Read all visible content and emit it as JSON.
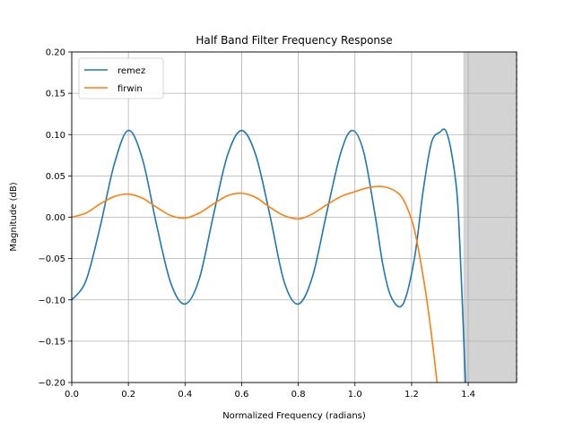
{
  "chart_data": {
    "type": "line",
    "title": "Half Band Filter Frequency Response",
    "xlabel": "Normalized Frequency (radians)",
    "ylabel": "Magnitude (dB)",
    "xlim": [
      0.0,
      1.5708
    ],
    "ylim": [
      -0.2,
      0.2
    ],
    "x_ticks": [
      0.0,
      0.2,
      0.4,
      0.6,
      0.8,
      1.0,
      1.2,
      1.4
    ],
    "x_tick_labels": [
      "0.0",
      "0.2",
      "0.4",
      "0.6",
      "0.8",
      "1.0",
      "1.2",
      "1.4"
    ],
    "y_ticks": [
      -0.2,
      -0.15,
      -0.1,
      -0.05,
      0.0,
      0.05,
      0.1,
      0.15,
      0.2
    ],
    "y_tick_labels": [
      "−0.20",
      "−0.15",
      "−0.10",
      "−0.05",
      "0.00",
      "0.05",
      "0.10",
      "0.15",
      "0.20"
    ],
    "grid": true,
    "legend_position": "top-left",
    "shaded_region": {
      "x_start": 1.383,
      "x_end": 1.5708,
      "color": "#d3d3d3"
    },
    "vertical_line": {
      "x": 1.5708,
      "color": "#2ca02c",
      "style": "dashed"
    },
    "series": [
      {
        "name": "remez",
        "color": "#1f77b4",
        "x": [
          0.0,
          0.05,
          0.1,
          0.15,
          0.2,
          0.25,
          0.3,
          0.35,
          0.4,
          0.45,
          0.5,
          0.55,
          0.6,
          0.65,
          0.7,
          0.75,
          0.8,
          0.85,
          0.9,
          0.95,
          0.99,
          1.03,
          1.07,
          1.1,
          1.13,
          1.17,
          1.21,
          1.24,
          1.27,
          1.3,
          1.32,
          1.34,
          1.36,
          1.37,
          1.38,
          1.39
        ],
        "values": [
          -0.1,
          -0.077,
          -0.012,
          0.064,
          0.105,
          0.07,
          -0.01,
          -0.08,
          -0.105,
          -0.075,
          0.002,
          0.075,
          0.105,
          0.075,
          0.002,
          -0.078,
          -0.105,
          -0.072,
          0.005,
          0.078,
          0.105,
          0.08,
          0.005,
          -0.06,
          -0.098,
          -0.105,
          -0.05,
          0.03,
          0.09,
          0.103,
          0.105,
          0.08,
          0.03,
          -0.03,
          -0.11,
          -0.2
        ]
      },
      {
        "name": "firwin",
        "color": "#ff7f0e",
        "x": [
          0.0,
          0.05,
          0.1,
          0.15,
          0.2,
          0.25,
          0.3,
          0.35,
          0.4,
          0.45,
          0.5,
          0.55,
          0.6,
          0.65,
          0.7,
          0.75,
          0.8,
          0.85,
          0.9,
          0.95,
          1.0,
          1.05,
          1.1,
          1.15,
          1.18,
          1.21,
          1.24,
          1.26,
          1.28,
          1.29
        ],
        "values": [
          0.0,
          0.005,
          0.016,
          0.025,
          0.028,
          0.023,
          0.012,
          0.002,
          -0.001,
          0.005,
          0.016,
          0.026,
          0.029,
          0.024,
          0.012,
          0.002,
          -0.002,
          0.004,
          0.015,
          0.025,
          0.031,
          0.036,
          0.037,
          0.03,
          0.015,
          -0.015,
          -0.07,
          -0.115,
          -0.17,
          -0.2
        ]
      }
    ]
  }
}
